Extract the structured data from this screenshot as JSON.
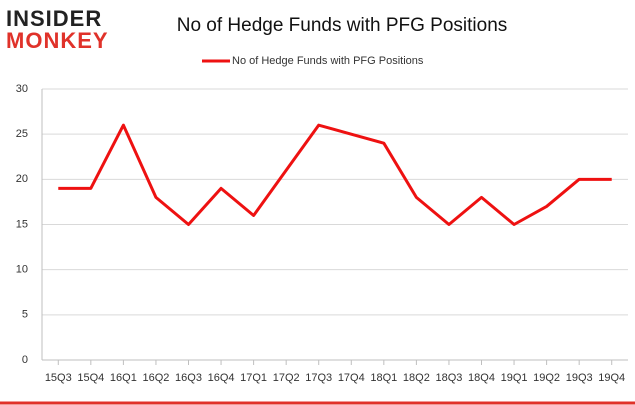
{
  "logo": {
    "line1": "INSIDER",
    "line2": "MONKEY"
  },
  "chart_data": {
    "type": "line",
    "title": "No of Hedge Funds with PFG Positions",
    "categories": [
      "15Q3",
      "15Q4",
      "16Q1",
      "16Q2",
      "16Q3",
      "16Q4",
      "17Q1",
      "17Q2",
      "17Q3",
      "17Q4",
      "18Q1",
      "18Q2",
      "18Q3",
      "18Q4",
      "19Q1",
      "19Q2",
      "19Q3",
      "19Q4"
    ],
    "series": [
      {
        "name": "No of Hedge Funds with PFG Positions",
        "color": "#ee1111",
        "values": [
          19,
          19,
          26,
          18,
          15,
          19,
          16,
          21,
          26,
          25,
          24,
          18,
          15,
          18,
          15,
          17,
          20,
          20
        ]
      }
    ],
    "ylim": [
      0,
      30
    ],
    "yticks": [
      0,
      5,
      10,
      15,
      20,
      25,
      30
    ],
    "grid": true,
    "legend": "top"
  }
}
